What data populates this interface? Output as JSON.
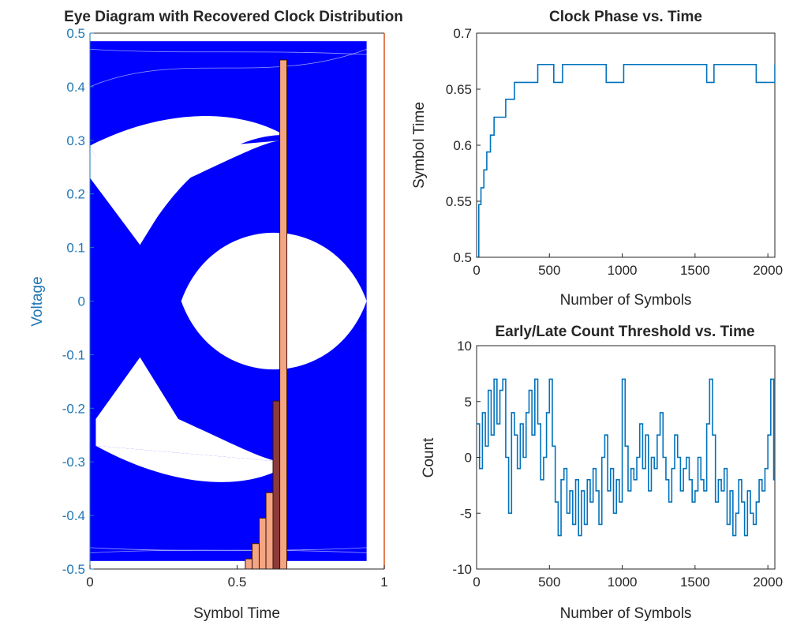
{
  "colors": {
    "eye_trace": "#0000ff",
    "hist_fill": "#f4a582",
    "hist_fill_dark": "#8c3b3b",
    "hist_edge": "#3a1010",
    "line_series": "#0072bd",
    "axis_text": "#262626",
    "left_axis": "#1f77b4",
    "right_axis": "#d95319"
  },
  "chart_data": [
    {
      "type": "line",
      "title": "Eye Diagram with Recovered Clock Distribution",
      "xlabel": "Symbol Time",
      "ylabel": "Voltage",
      "xlim": [
        0,
        1
      ],
      "ylim": [
        -0.5,
        0.5
      ],
      "xticks": [
        0,
        0.5,
        1
      ],
      "xtick_labels": [
        "0",
        "0.5",
        "1"
      ],
      "yticks": [
        -0.5,
        -0.4,
        -0.3,
        -0.2,
        -0.1,
        0,
        0.1,
        0.2,
        0.3,
        0.4,
        0.5
      ],
      "ytick_labels": [
        "-0.5",
        "-0.4",
        "-0.3",
        "-0.2",
        "-0.1",
        "0",
        "0.1",
        "0.2",
        "0.3",
        "0.4",
        "0.5"
      ],
      "grid": false,
      "trace_xlim": [
        0,
        0.94
      ],
      "eye_levels": {
        "outer": [
          0.47,
          -0.47
        ],
        "inner_open": [
          0.31,
          -0.31
        ],
        "mid_open": [
          0.13,
          -0.13
        ],
        "crossing_voltage": 0,
        "crossing_times": [
          0.17,
          0.94
        ]
      },
      "histogram": {
        "note_axis": "right y-axis (normalized density, unlabeled)",
        "bins": [
          {
            "x0": 0.528,
            "x1": 0.551,
            "value": 0.02
          },
          {
            "x0": 0.551,
            "x1": 0.575,
            "value": 0.05
          },
          {
            "x0": 0.575,
            "x1": 0.598,
            "value": 0.1
          },
          {
            "x0": 0.598,
            "x1": 0.622,
            "value": 0.15
          },
          {
            "x0": 0.622,
            "x1": 0.645,
            "value": 0.33
          },
          {
            "x0": 0.645,
            "x1": 0.669,
            "value": 1.0
          }
        ]
      }
    },
    {
      "type": "line",
      "title": "Clock Phase vs. Time",
      "xlabel": "Number of Symbols",
      "ylabel": "Symbol Time",
      "xlim": [
        0,
        2048
      ],
      "ylim": [
        0.5,
        0.7
      ],
      "xticks": [
        0,
        500,
        1000,
        1500,
        2000
      ],
      "xtick_labels": [
        "0",
        "500",
        "1000",
        "1500",
        "2000"
      ],
      "yticks": [
        0.5,
        0.55,
        0.6,
        0.65,
        0.7
      ],
      "ytick_labels": [
        "0.5",
        "0.55",
        "0.6",
        "0.65",
        "0.7"
      ],
      "grid": false,
      "step": true,
      "x": [
        0,
        15,
        30,
        50,
        70,
        95,
        120,
        160,
        200,
        260,
        420,
        530,
        590,
        890,
        1010,
        1580,
        1630,
        1920,
        2048
      ],
      "y": [
        0.5,
        0.547,
        0.562,
        0.578,
        0.594,
        0.609,
        0.625,
        0.625,
        0.641,
        0.656,
        0.672,
        0.656,
        0.672,
        0.656,
        0.672,
        0.656,
        0.672,
        0.656,
        0.672
      ]
    },
    {
      "type": "line",
      "title": "Early/Late Count Threshold vs. Time",
      "xlabel": "Number of Symbols",
      "ylabel": "Count",
      "xlim": [
        0,
        2048
      ],
      "ylim": [
        -10,
        10
      ],
      "xticks": [
        0,
        500,
        1000,
        1500,
        2000
      ],
      "xtick_labels": [
        "0",
        "500",
        "1000",
        "1500",
        "2000"
      ],
      "yticks": [
        -10,
        -5,
        0,
        5,
        10
      ],
      "ytick_labels": [
        "-10",
        "-5",
        "0",
        "5",
        "10"
      ],
      "grid": false,
      "step": true,
      "x": [
        0,
        20,
        40,
        60,
        80,
        100,
        120,
        140,
        160,
        180,
        200,
        220,
        240,
        260,
        280,
        300,
        320,
        340,
        360,
        380,
        400,
        420,
        440,
        460,
        480,
        500,
        520,
        540,
        560,
        580,
        600,
        620,
        640,
        660,
        680,
        700,
        720,
        740,
        760,
        780,
        800,
        820,
        840,
        860,
        880,
        900,
        920,
        940,
        960,
        980,
        1000,
        1020,
        1040,
        1060,
        1080,
        1100,
        1120,
        1140,
        1160,
        1180,
        1200,
        1220,
        1240,
        1260,
        1280,
        1300,
        1320,
        1340,
        1360,
        1380,
        1400,
        1420,
        1440,
        1460,
        1480,
        1500,
        1520,
        1540,
        1560,
        1580,
        1600,
        1620,
        1640,
        1660,
        1680,
        1700,
        1720,
        1740,
        1760,
        1780,
        1800,
        1820,
        1840,
        1860,
        1880,
        1900,
        1920,
        1940,
        1960,
        1980,
        2000,
        2020,
        2040
      ],
      "y": [
        3,
        -1,
        4,
        1,
        6,
        2,
        7,
        3,
        6,
        7,
        0,
        -5,
        4,
        2,
        -1,
        3,
        0,
        4,
        6,
        2,
        7,
        3,
        -2,
        0,
        4,
        7,
        1,
        -4,
        -7,
        -2,
        -1,
        -5,
        -3,
        -6,
        -2,
        -7,
        -3,
        -6,
        -2,
        -4,
        -1,
        -3,
        -6,
        0,
        2,
        -3,
        -1,
        -5,
        -2,
        -4,
        7,
        1,
        -3,
        -1,
        -2,
        0,
        3,
        -1,
        2,
        -3,
        0,
        -1,
        2,
        4,
        0,
        -2,
        -4,
        -1,
        2,
        0,
        -3,
        -1,
        0,
        -2,
        -4,
        -3,
        0,
        -2,
        -3,
        3,
        7,
        2,
        -4,
        -2,
        -3,
        -1,
        -6,
        -3,
        -7,
        -5,
        -2,
        -4,
        -7,
        -3,
        -5,
        -6,
        -4,
        -2,
        -3,
        -1,
        2,
        7,
        -2
      ]
    }
  ]
}
